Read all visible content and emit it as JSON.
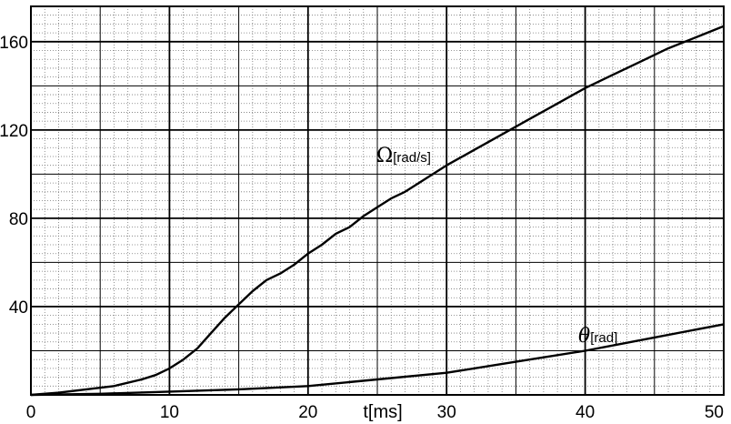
{
  "chart_data": {
    "type": "line",
    "xlabel": "t[ms]",
    "ylabel": "",
    "xlim": [
      0,
      50
    ],
    "ylim": [
      0,
      176
    ],
    "x_ticks": [
      0,
      10,
      20,
      30,
      40,
      50
    ],
    "y_ticks": [
      40,
      80,
      120,
      160
    ],
    "grid": "on (major every 5 ms / 20 units, dotted minor every 1 ms / 4 units)",
    "series": [
      {
        "name": "Ω[rad/s]",
        "symbol": "Ω",
        "unit": "[rad/s]",
        "x": [
          0,
          2,
          4,
          6,
          8,
          9,
          10,
          11,
          12,
          13,
          14,
          15,
          16,
          17,
          18,
          19,
          20,
          21,
          22,
          23,
          24,
          25,
          26,
          27,
          28,
          29,
          30,
          32,
          34,
          36,
          38,
          40,
          42,
          44,
          46,
          48,
          50
        ],
        "values": [
          0,
          1,
          2.5,
          4,
          7,
          9,
          12,
          16,
          21,
          28,
          35,
          41,
          47,
          52,
          55,
          59,
          64,
          68,
          73,
          76,
          81,
          85,
          89,
          92,
          96,
          100,
          104,
          111,
          118,
          125,
          132,
          139,
          145,
          151,
          157,
          162,
          167
        ]
      },
      {
        "name": "θ[rad]",
        "symbol": "θ",
        "unit": "[rad]",
        "x": [
          0,
          5,
          10,
          15,
          20,
          25,
          30,
          35,
          40,
          45,
          50
        ],
        "values": [
          0,
          0.5,
          1.5,
          2.5,
          4,
          7,
          10,
          15,
          20,
          26,
          32
        ]
      }
    ]
  }
}
